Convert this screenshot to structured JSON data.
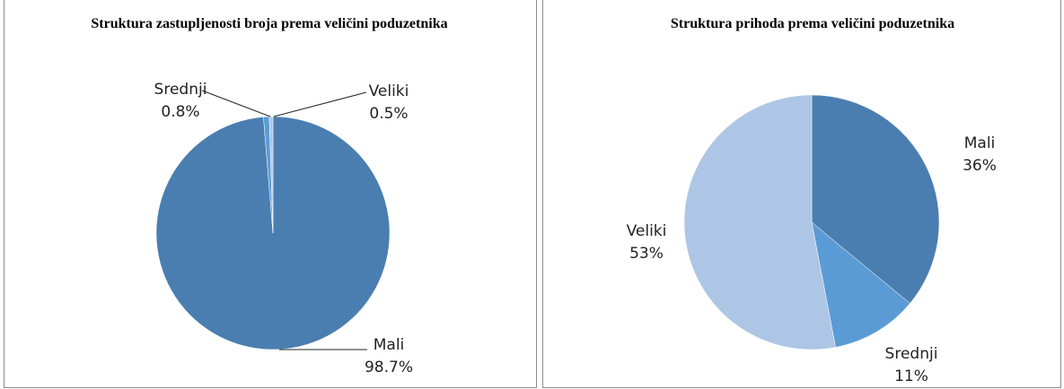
{
  "chart_data": [
    {
      "type": "pie",
      "title": "Struktura zastupljenosti broja prema veličini poduzetnika",
      "categories": [
        "Mali",
        "Srednji",
        "Veliki"
      ],
      "values": [
        98.7,
        0.8,
        0.5
      ],
      "value_labels": [
        "98.7%",
        "0.8%",
        "0.5%"
      ],
      "colors": [
        "#4a7eb0",
        "#5b9bd5",
        "#adc6e5"
      ]
    },
    {
      "type": "pie",
      "title": "Struktura prihoda prema veličini poduzetnika",
      "categories": [
        "Mali",
        "Srednji",
        "Veliki"
      ],
      "values": [
        36,
        11,
        53
      ],
      "value_labels": [
        "36%",
        "11%",
        "53%"
      ],
      "colors": [
        "#4a7eb0",
        "#5b9bd5",
        "#adc6e5"
      ]
    }
  ]
}
